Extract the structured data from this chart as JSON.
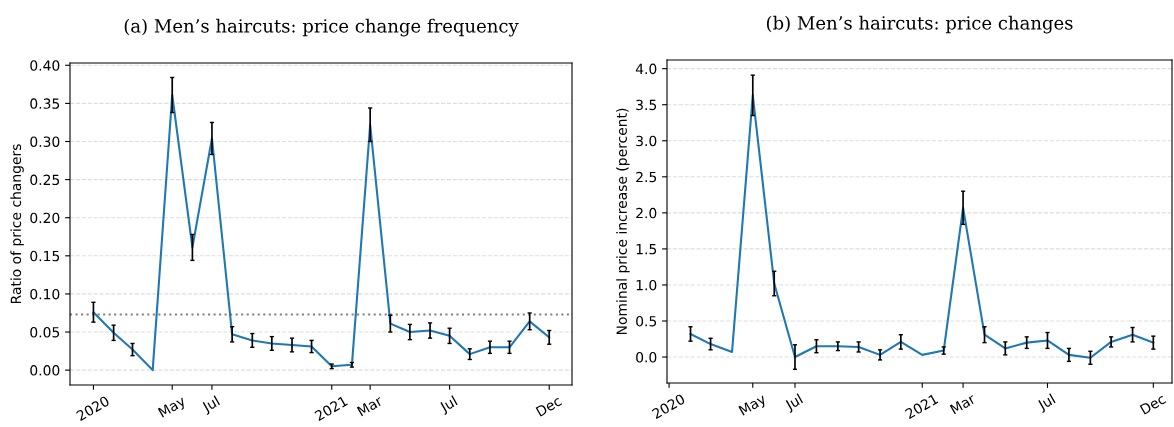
{
  "chart_data": [
    {
      "type": "line",
      "title": "(a) Men’s haircuts: price change frequency",
      "ylabel": "Ratio of price changers",
      "x": [
        "2020-01",
        "2020-02",
        "2020-03",
        "2020-04",
        "2020-05",
        "2020-06",
        "2020-07",
        "2020-08",
        "2020-09",
        "2020-10",
        "2020-11",
        "2020-12",
        "2021-01",
        "2021-02",
        "2021-03",
        "2021-04",
        "2021-05",
        "2021-06",
        "2021-07",
        "2021-08",
        "2021-09",
        "2021-10",
        "2021-11",
        "2021-12"
      ],
      "series": [
        {
          "color": "#1f77b4",
          "values": [
            0.076,
            0.049,
            0.027,
            0.0,
            0.361,
            0.161,
            0.304,
            0.047,
            0.039,
            0.035,
            0.033,
            0.031,
            0.005,
            0.007,
            0.322,
            0.061,
            0.05,
            0.052,
            0.045,
            0.021,
            0.03,
            0.03,
            0.064,
            0.043
          ],
          "errors": [
            0.013,
            0.01,
            0.008,
            null,
            0.023,
            0.017,
            0.021,
            0.01,
            0.009,
            0.009,
            0.009,
            0.008,
            0.003,
            0.003,
            0.022,
            0.011,
            0.01,
            0.01,
            0.01,
            0.007,
            0.008,
            0.008,
            0.011,
            0.009
          ]
        }
      ],
      "xlim": [
        "2019-11-26",
        "2022-01-05"
      ],
      "xticks": [
        {
          "value": "2020-01",
          "label": "2020"
        },
        {
          "value": "2020-05",
          "label": "May"
        },
        {
          "value": "2020-07",
          "label": "Jul"
        },
        {
          "value": "2021-01",
          "label": "2021"
        },
        {
          "value": "2021-03",
          "label": "Mar"
        },
        {
          "value": "2021-07",
          "label": "Jul"
        },
        {
          "value": "2021-12",
          "label": "Dec"
        }
      ],
      "ylim": [
        -0.0195,
        0.403
      ],
      "yticks": [
        {
          "value": 0,
          "label": "0.00"
        },
        {
          "value": 0.05,
          "label": "0.05"
        },
        {
          "value": 0.1,
          "label": "0.10"
        },
        {
          "value": 0.15,
          "label": "0.15"
        },
        {
          "value": 0.2,
          "label": "0.20"
        },
        {
          "value": 0.25,
          "label": "0.25"
        },
        {
          "value": 0.3,
          "label": "0.30"
        },
        {
          "value": 0.35,
          "label": "0.35"
        },
        {
          "value": 0.4,
          "label": "0.40"
        }
      ],
      "ref_lines": [
        {
          "axis": "y",
          "value": 0.073,
          "color": "#808080",
          "line_style": "dotted"
        }
      ],
      "grid": "y",
      "legend": false,
      "marker": "none",
      "line_style": "solid"
    },
    {
      "type": "line",
      "title": "(b) Men’s haircuts: price changes",
      "ylabel": "Nominal price increase (percent)",
      "x": [
        "2020-02",
        "2020-03",
        "2020-04",
        "2020-05",
        "2020-06",
        "2020-07",
        "2020-08",
        "2020-09",
        "2020-10",
        "2020-11",
        "2020-12",
        "2021-01",
        "2021-02",
        "2021-03",
        "2021-04",
        "2021-05",
        "2021-06",
        "2021-07",
        "2021-08",
        "2021-09",
        "2021-10",
        "2021-11",
        "2021-12"
      ],
      "series": [
        {
          "color": "#1f77b4",
          "values": [
            0.32,
            0.18,
            0.07,
            3.63,
            1.02,
            0.0,
            0.15,
            0.15,
            0.14,
            0.03,
            0.21,
            0.03,
            0.09,
            2.07,
            0.31,
            0.12,
            0.2,
            0.23,
            0.03,
            -0.01,
            0.21,
            0.31,
            0.2
          ],
          "errors": [
            0.1,
            0.08,
            null,
            0.28,
            0.17,
            0.17,
            0.09,
            0.06,
            0.07,
            0.07,
            0.1,
            null,
            0.05,
            0.23,
            0.11,
            0.09,
            0.08,
            0.11,
            0.09,
            0.09,
            0.07,
            0.1,
            0.09
          ]
        }
      ],
      "xlim": [
        "2019-12-29",
        "2021-12-28"
      ],
      "xticks": [
        {
          "value": "2020-01",
          "label": "2020"
        },
        {
          "value": "2020-05",
          "label": "May"
        },
        {
          "value": "2020-07",
          "label": "Jul"
        },
        {
          "value": "2021-01",
          "label": "2021"
        },
        {
          "value": "2021-03",
          "label": "Mar"
        },
        {
          "value": "2021-07",
          "label": "Jul"
        },
        {
          "value": "2021-12",
          "label": "Dec"
        }
      ],
      "ylim": [
        -0.36,
        4.12
      ],
      "yticks": [
        {
          "value": 0,
          "label": "0.0"
        },
        0.5,
        {
          "value": 1,
          "label": "1.0"
        },
        1.5,
        {
          "value": 2,
          "label": "2.0"
        },
        2.5,
        {
          "value": 3,
          "label": "3.0"
        },
        3.5,
        {
          "value": 4,
          "label": "4.0"
        }
      ],
      "grid": "y",
      "legend": false,
      "marker": "none",
      "line_style": "solid"
    }
  ]
}
